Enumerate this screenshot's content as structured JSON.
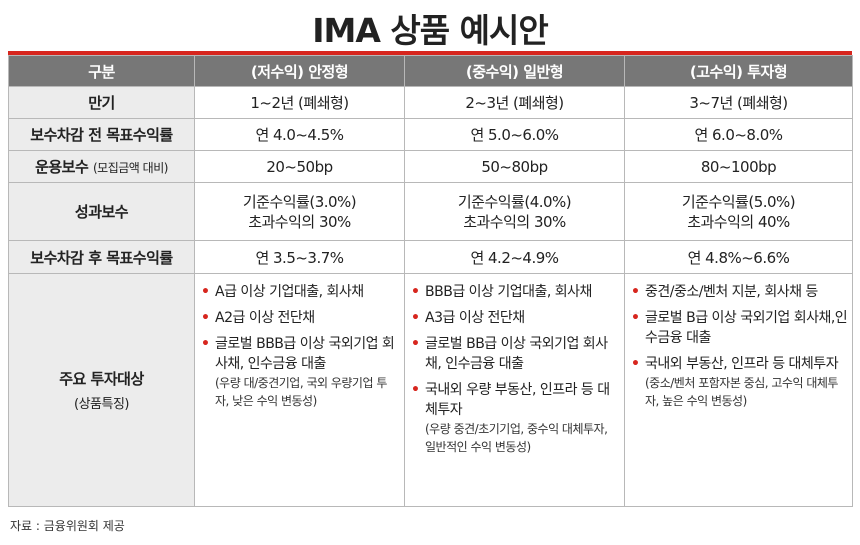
{
  "title": "IMA 상품 예시안",
  "header": {
    "col0": "구분",
    "col1": "(저수익) 안정형",
    "col2": "(중수익) 일반형",
    "col3": "(고수익) 투자형"
  },
  "rows": {
    "maturity": {
      "label": "만기",
      "v1": "1~2년 (폐쇄형)",
      "v2": "2~3년 (폐쇄형)",
      "v3": "3~7년 (폐쇄형)"
    },
    "target_pre": {
      "label": "보수차감 전 목표수익률",
      "v1": "연 4.0~4.5%",
      "v2": "연 5.0~6.0%",
      "v3": "연 6.0~8.0%"
    },
    "fee": {
      "label": "운용보수",
      "label_sub": "(모집금액 대비)",
      "v1": "20~50bp",
      "v2": "50~80bp",
      "v3": "80~100bp"
    },
    "perf": {
      "label": "성과보수",
      "v1a": "기준수익률(3.0%)",
      "v1b": "초과수익의 30%",
      "v2a": "기준수익률(4.0%)",
      "v2b": "초과수익의 30%",
      "v3a": "기준수익률(5.0%)",
      "v3b": "초과수익의 40%"
    },
    "target_post": {
      "label": "보수차감 후 목표수익률",
      "v1": "연 3.5~3.7%",
      "v2": "연 4.2~4.9%",
      "v3": "연 4.8%~6.6%"
    },
    "invest": {
      "label": "주요 투자대상",
      "label_sub": "(상품특징)",
      "bullet": "•",
      "c1": {
        "i1": "A급 이상 기업대출, 회사채",
        "i2": "A2급 이상 전단채",
        "i3": "글로벌 BBB급 이상 국외기업 회사채, 인수금융 대출",
        "note": "(우량 대/중견기업, 국외 우량기업 투자, 낮은 수익 변동성)"
      },
      "c2": {
        "i1": "BBB급 이상 기업대출, 회사채",
        "i2": "A3급 이상 전단채",
        "i3": "글로벌 BB급 이상 국외기업 회사채, 인수금융 대출",
        "i4": "국내외 우량 부동산, 인프라 등 대체투자",
        "note": "(우량 중견/초기기업, 중수익 대체투자, 일반적인 수익 변동성)"
      },
      "c3": {
        "i1": "중견/중소/벤처 지분, 회사채 등",
        "i2": "글로벌 B급 이상 국외기업 회사채,인수금융 대출",
        "i3": "국내외 부동산, 인프라 등 대체투자",
        "note": "(중소/벤처 포함자본 중심, 고수익 대체투자, 높은 수익 변동성)"
      }
    }
  },
  "source": "자료 : 금융위원회 제공",
  "colors": {
    "accent": "#d7261e",
    "header_bg": "#777777",
    "label_bg": "#ececec"
  }
}
